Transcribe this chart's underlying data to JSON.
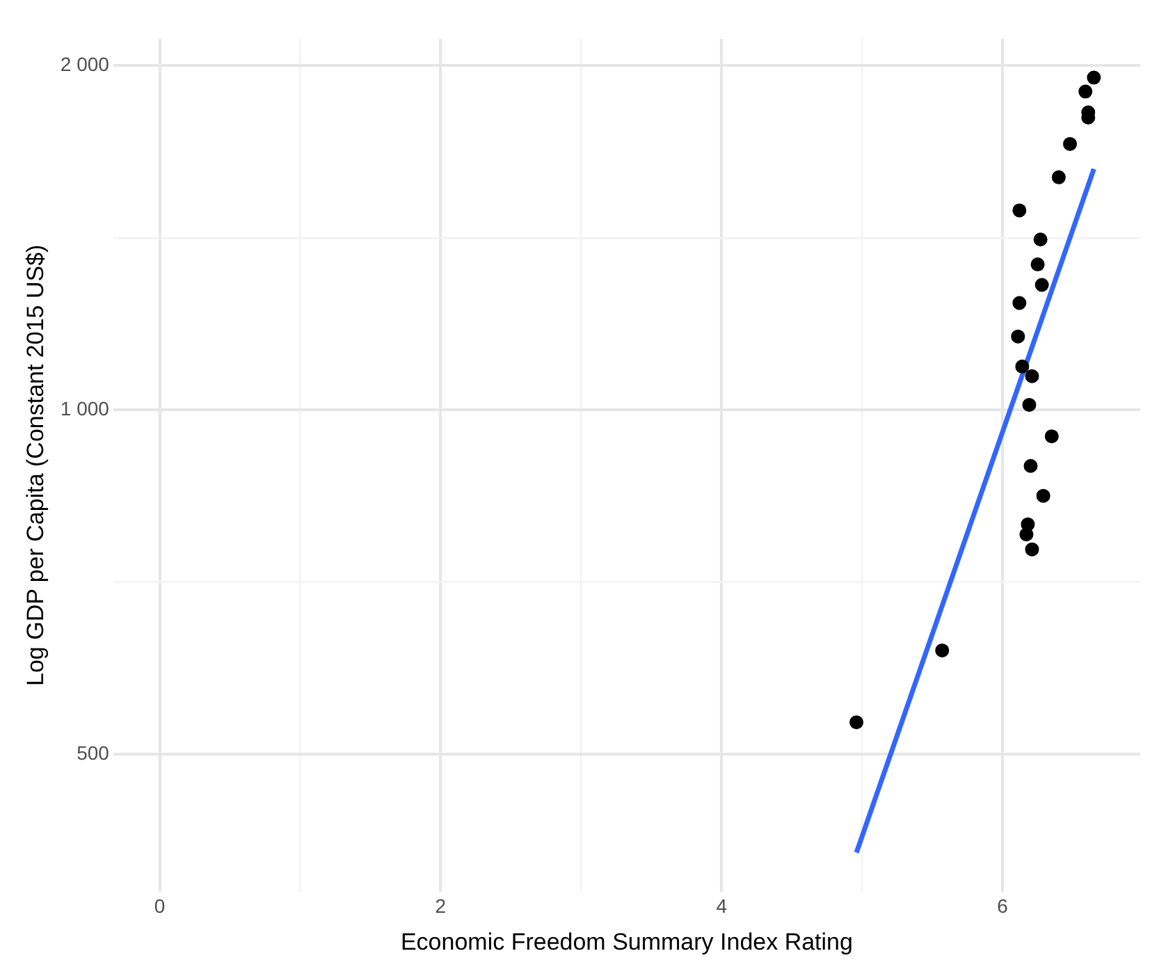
{
  "chart_data": {
    "type": "scatter",
    "xlabel": "Economic Freedom Summary Index Rating",
    "ylabel": "Log GDP per Capita (Constant 2015 US$)",
    "log": "y",
    "grid": true,
    "legend": false,
    "marker": "circle",
    "xlim": [
      -0.33,
      6.98
    ],
    "ylim": [
      379,
      2110
    ],
    "xticks": [
      0,
      {
        "value": 1,
        "label": null
      },
      2,
      {
        "value": 3,
        "label": null
      },
      4,
      {
        "value": 5,
        "label": null
      },
      6
    ],
    "yticks": [
      500,
      {
        "value": 707,
        "label": null
      },
      {
        "value": 1000,
        "label": "1 000"
      },
      {
        "value": 1414,
        "label": null
      },
      {
        "value": 2000,
        "label": "2 000"
      }
    ],
    "series": [
      {
        "type": "scatter",
        "color": "#000000",
        "x": [
          6.65,
          6.59,
          6.61,
          6.61,
          6.48,
          6.4,
          6.12,
          6.27,
          6.25,
          6.28,
          6.12,
          6.11,
          6.14,
          6.21,
          6.19,
          6.35,
          6.2,
          6.29,
          6.18,
          6.17,
          6.21,
          5.57,
          4.96
        ],
        "values": [
          1952,
          1898,
          1820,
          1801,
          1708,
          1597,
          1494,
          1409,
          1340,
          1286,
          1240,
          1159,
          1091,
          1070,
          1010,
          948,
          893,
          841,
          794,
          778,
          755,
          616,
          533
        ]
      },
      {
        "type": "line",
        "color": "#3366ff",
        "line_style": "solid",
        "marker": "none",
        "x": [
          4.96,
          6.65
        ],
        "values": [
          410,
          1624
        ]
      }
    ]
  }
}
